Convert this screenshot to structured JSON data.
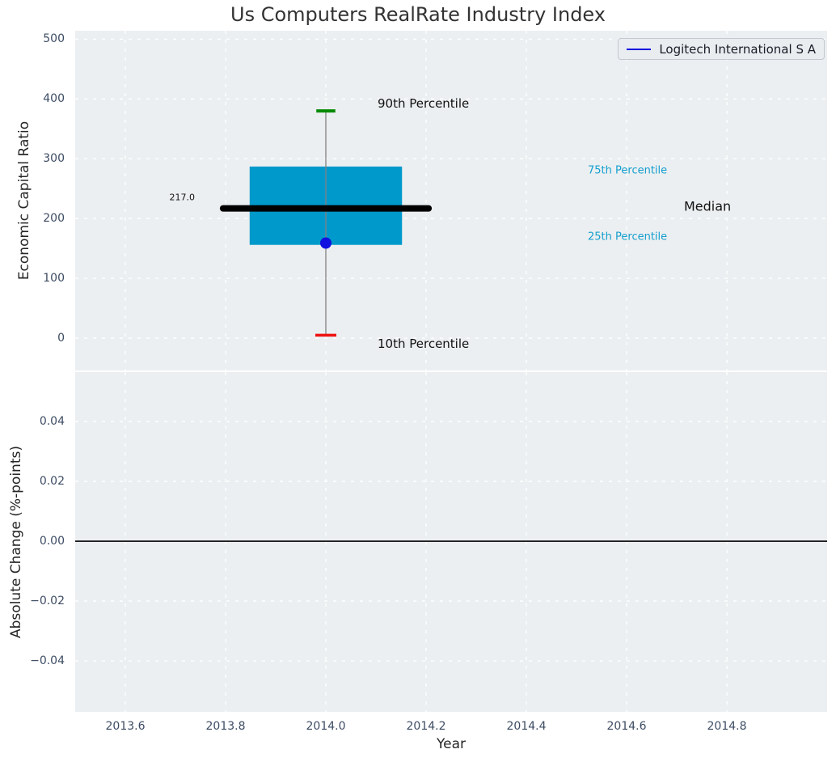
{
  "title": "Us Computers RealRate Industry Index",
  "legend": {
    "label": "Logitech International S A"
  },
  "colors": {
    "figure_bg": "#ffffff",
    "axes_bg": "#eceff1",
    "grid": "#ffffff",
    "tick_label": "#3d4c63",
    "box_fill": "#0099cb",
    "median_line": "#000000",
    "whisker": "#808080",
    "p90_cap": "#048a04",
    "p10_cap": "#ee1111",
    "company_marker": "#1111e0",
    "percentile_text": "#149fce",
    "zero_line": "#000000"
  },
  "chart_data": [
    {
      "type": "boxplot",
      "title": "Us Computers RealRate Industry Index",
      "xlabel": "Year",
      "ylabel": "Economic Capital Ratio",
      "x": 2014.0,
      "xlim": [
        2013.5,
        2015.0
      ],
      "ylim": [
        -54,
        514
      ],
      "xticks": [
        2013.6,
        2013.8,
        2014.0,
        2014.2,
        2014.4,
        2014.6,
        2014.8
      ],
      "xtick_labels": [
        "2013.6",
        "2013.8",
        "2014.0",
        "2014.2",
        "2014.4",
        "2014.6",
        "2014.8"
      ],
      "yticks": [
        0,
        100,
        200,
        300,
        400,
        500
      ],
      "ytick_labels": [
        "0",
        "100",
        "200",
        "300",
        "400",
        "500"
      ],
      "grid": true,
      "percentiles": {
        "p10": 5,
        "p25": 156,
        "median": 217.0,
        "p75": 287,
        "p90": 380
      },
      "company": {
        "name": "Logitech International S A",
        "year": 2014.0,
        "value": 159
      },
      "labels": {
        "median_value": "217.0",
        "p90": "90th Percentile",
        "p10": "10th Percentile",
        "p75": "75th Percentile",
        "p25": "25th Percentile",
        "median": "Median"
      },
      "legend": {
        "position": "upper right",
        "entries": [
          {
            "label": "Logitech International S A",
            "color": "#1111e0"
          }
        ]
      }
    },
    {
      "type": "line",
      "xlabel": "Year",
      "ylabel": "Absolute Change (%-points)",
      "xlim": [
        2013.5,
        2015.0
      ],
      "ylim": [
        -0.057,
        0.0565
      ],
      "xticks": [
        2013.6,
        2013.8,
        2014.0,
        2014.2,
        2014.4,
        2014.6,
        2014.8
      ],
      "yticks": [
        0.04,
        0.02,
        0.0,
        -0.02,
        -0.04
      ],
      "ytick_labels": [
        "0.04",
        "0.02",
        "0.00",
        "−0.02",
        "−0.04"
      ],
      "grid": true,
      "zero_line": 0.0,
      "series": [
        {
          "name": "Logitech International S A",
          "x": [],
          "y": []
        }
      ]
    }
  ]
}
